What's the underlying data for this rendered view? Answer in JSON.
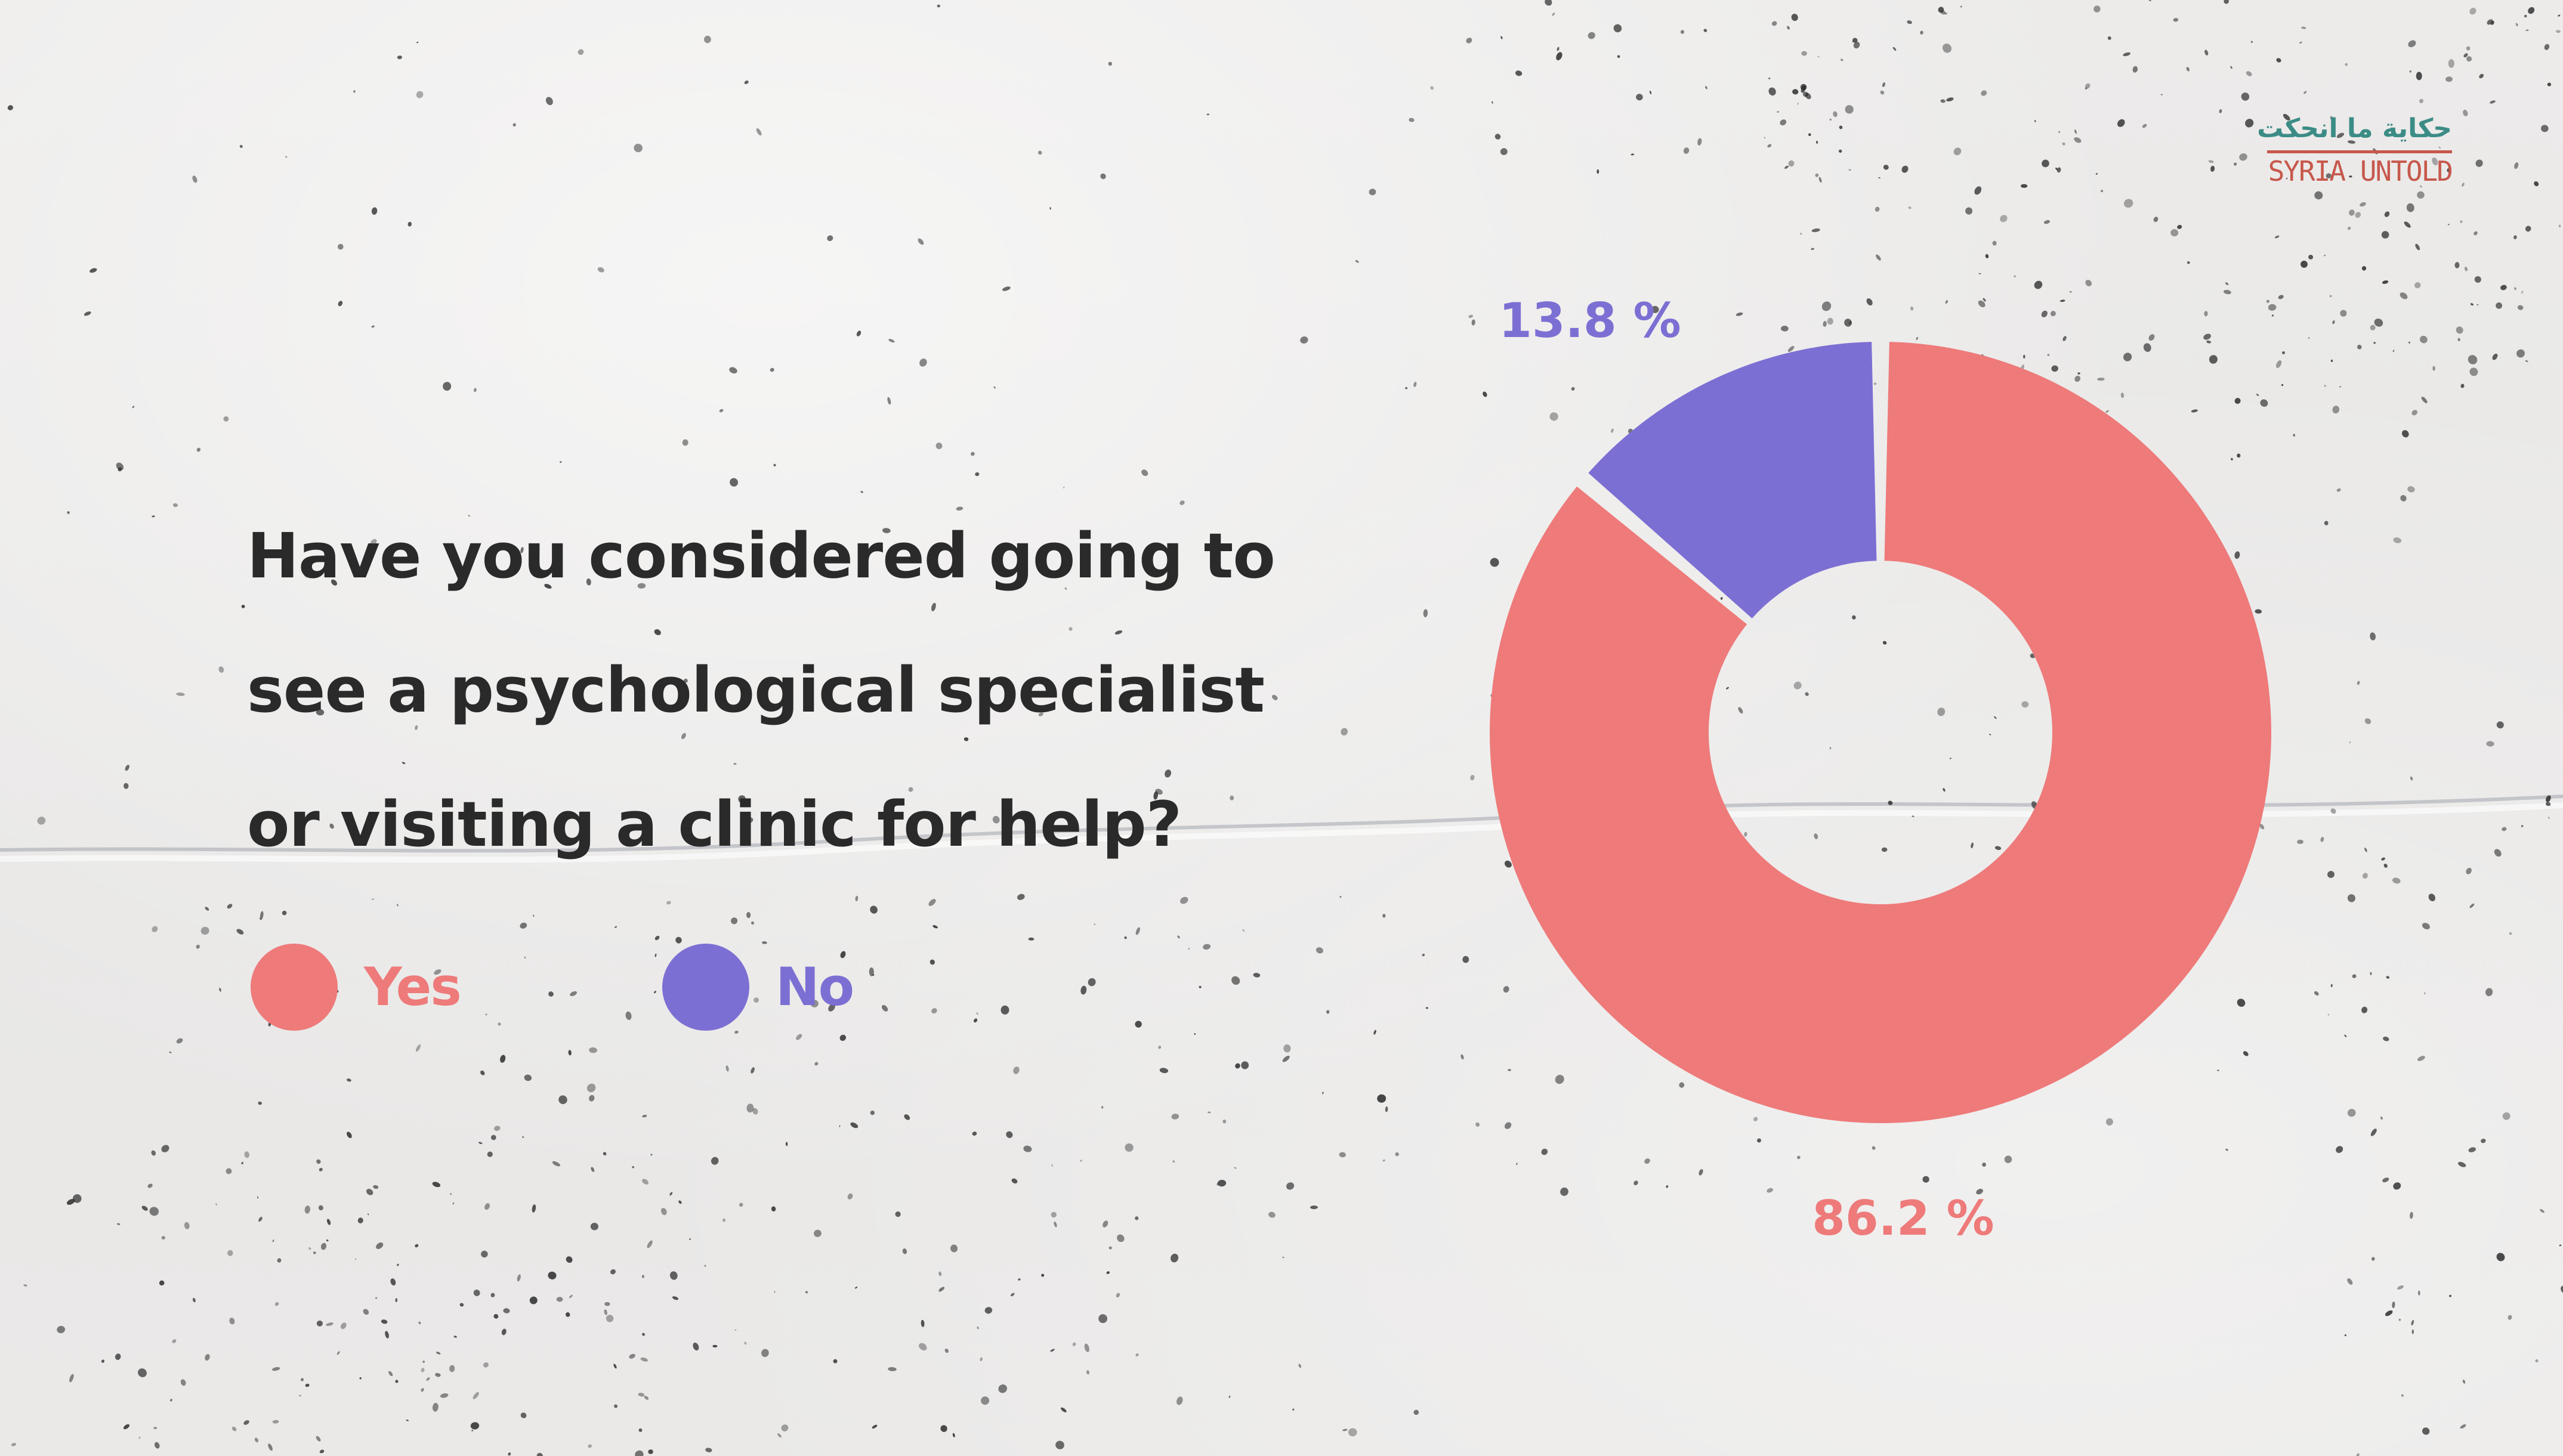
{
  "question": {
    "lines": [
      "Have you considered going to",
      "see a psychological specialist",
      "or visiting a clinic for help?"
    ]
  },
  "legend": [
    {
      "label": "Yes",
      "color": "#ee7a7a"
    },
    {
      "label": "No",
      "color": "#7c6fd3"
    }
  ],
  "chart_data": {
    "type": "pie",
    "donut": true,
    "categories": [
      "Yes",
      "No"
    ],
    "values": [
      86.2,
      13.8
    ],
    "data_labels": [
      "86.2 %",
      "13.8 %"
    ],
    "colors": [
      "#ee7a7a",
      "#7c6fd3"
    ],
    "legend_position": "below-left"
  },
  "logo": {
    "arabic": "حكاية ما انحكت",
    "english": "SYRIA UNTOLD",
    "colors": {
      "arabic": "#3c8c86",
      "english": "#c7584c"
    }
  }
}
